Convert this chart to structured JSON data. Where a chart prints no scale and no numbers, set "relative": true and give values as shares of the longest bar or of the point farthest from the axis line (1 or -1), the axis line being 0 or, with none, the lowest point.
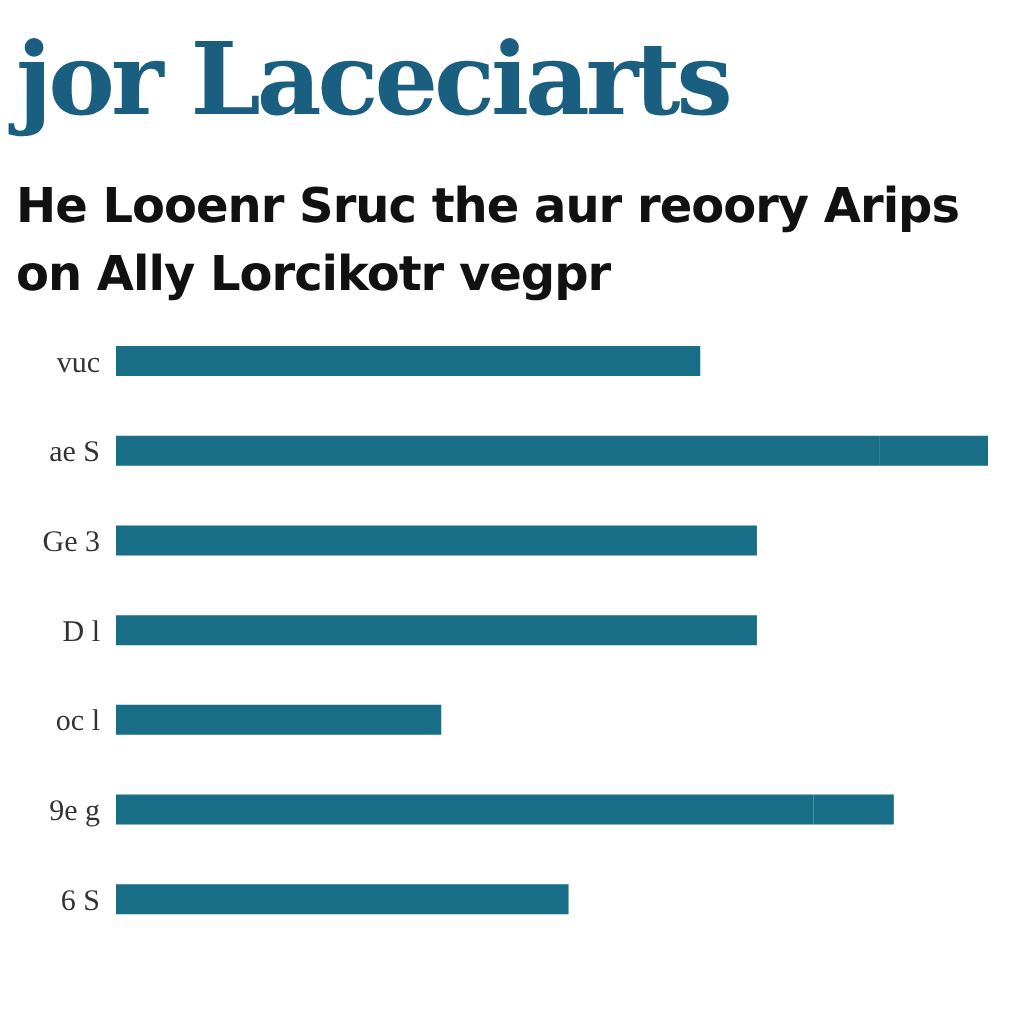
{
  "chart_data": {
    "type": "bar",
    "orientation": "horizontal",
    "stacked": true,
    "relative": true,
    "title": "jor Laceciarts",
    "subtitle": "He Looenr Sruc the aur reoory Arips on Ally Lorcikotr vegpr",
    "categories": [
      "vuc",
      "ae S",
      "Ge 3",
      "D l",
      "oc l",
      "9e g",
      "6 S"
    ],
    "series": [
      {
        "color": "#176e86",
        "values": [
          0.67,
          0.876,
          0.735,
          0.735,
          0.373,
          0.8,
          0.519
        ]
      },
      {
        "color": "#176e86",
        "values": [
          null,
          0.124,
          null,
          null,
          null,
          0.092,
          null
        ]
      }
    ],
    "grid": false,
    "legend": false
  }
}
